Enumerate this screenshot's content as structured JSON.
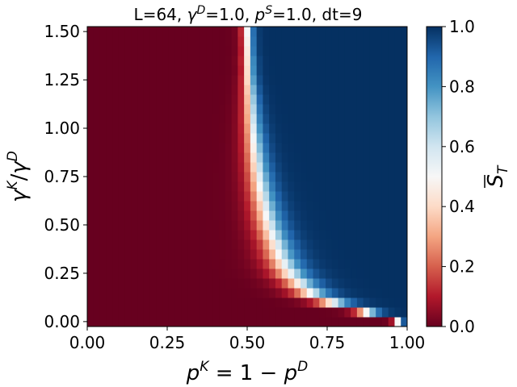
{
  "chart_data": {
    "type": "heatmap",
    "title": {
      "prefix": "L=64, ",
      "gamma": "γ",
      "gamma_sup": "D",
      "gamma_val": "=1.0, ",
      "p": "p",
      "p_sup": "S",
      "p_val": "=1.0, dt=9"
    },
    "xlabel": {
      "p": "p",
      "sup": "K",
      "rest": " = 1 − ",
      "p2": "p",
      "sup2": "D"
    },
    "ylabel": {
      "g1": "γ",
      "sup1": "K",
      "slash": "/",
      "g2": "γ",
      "sup2": "D"
    },
    "colorbar_label": {
      "main": "S",
      "sub": "T"
    },
    "x_ticks": [
      "0.00",
      "0.25",
      "0.50",
      "0.75",
      "1.00"
    ],
    "x_tick_values": [
      0.0,
      0.25,
      0.5,
      0.75,
      1.0
    ],
    "y_ticks": [
      "0.00",
      "0.25",
      "0.50",
      "0.75",
      "1.00",
      "1.25",
      "1.50"
    ],
    "y_tick_values": [
      0.0,
      0.25,
      0.5,
      0.75,
      1.0,
      1.25,
      1.5
    ],
    "colorbar_ticks": [
      "0.0",
      "0.2",
      "0.4",
      "0.6",
      "0.8",
      "1.0"
    ],
    "colorbar_tick_values": [
      0.0,
      0.2,
      0.4,
      0.6,
      0.8,
      1.0
    ],
    "xlim": [
      0.0,
      1.0
    ],
    "ylim": [
      -0.0255,
      1.5255
    ],
    "clim": [
      0.0,
      1.0
    ],
    "colormap": "RdBu",
    "n_x": 51,
    "n_y": 31,
    "transition_x": [
      0.98,
      0.88,
      0.77,
      0.7,
      0.665,
      0.635,
      0.615,
      0.6,
      0.59,
      0.578,
      0.568,
      0.56,
      0.553,
      0.546,
      0.54,
      0.535,
      0.53,
      0.526,
      0.522,
      0.519,
      0.516,
      0.513,
      0.511,
      0.509,
      0.507,
      0.505,
      0.504,
      0.503,
      0.502,
      0.501,
      0.5
    ],
    "transition_width": [
      0.008,
      0.02,
      0.03,
      0.032,
      0.032,
      0.032,
      0.031,
      0.03,
      0.029,
      0.028,
      0.027,
      0.026,
      0.025,
      0.024,
      0.023,
      0.022,
      0.021,
      0.02,
      0.019,
      0.018,
      0.017,
      0.016,
      0.015,
      0.014,
      0.013,
      0.012,
      0.011,
      0.011,
      0.01,
      0.01,
      0.01
    ]
  }
}
